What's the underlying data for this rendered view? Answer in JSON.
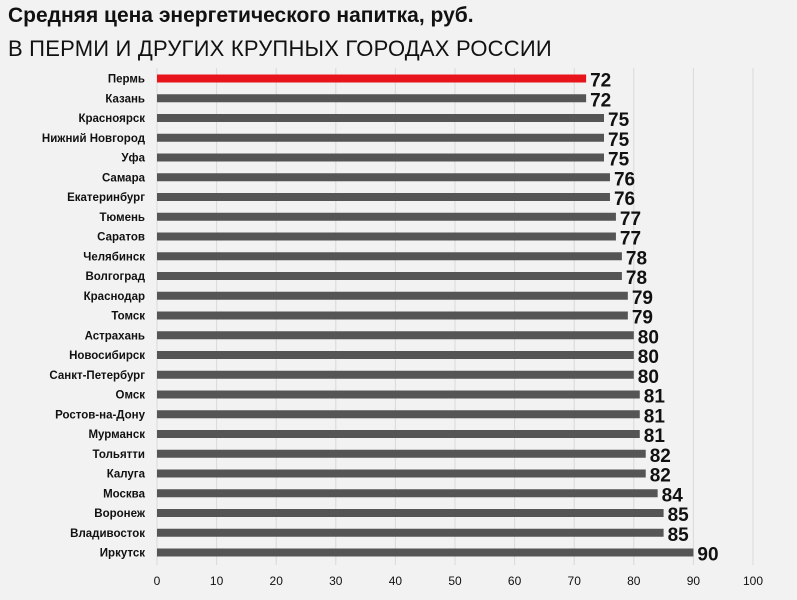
{
  "chart_data": {
    "type": "bar",
    "orientation": "horizontal",
    "title": "Средняя цена энергетического напитка, руб.",
    "subtitle": "В ПЕРМИ И ДРУГИХ КРУПНЫХ ГОРОДАХ РОССИИ",
    "categories": [
      "Пермь",
      "Казань",
      "Красноярск",
      "Нижний Новгород",
      "Уфа",
      "Самара",
      "Екатеринбург",
      "Тюмень",
      "Саратов",
      "Челябинск",
      "Волгоград",
      "Краснодар",
      "Томск",
      "Астрахань",
      "Новосибирск",
      "Санкт-Петербург",
      "Омск",
      "Ростов-на-Дону",
      "Мурманск",
      "Тольятти",
      "Калуга",
      "Москва",
      "Воронеж",
      "Владивосток",
      "Иркутск"
    ],
    "values": [
      72,
      72,
      75,
      75,
      75,
      76,
      76,
      77,
      77,
      78,
      78,
      79,
      79,
      80,
      80,
      80,
      81,
      81,
      81,
      82,
      82,
      84,
      85,
      85,
      90
    ],
    "highlight_index": 0,
    "colors": {
      "bar": "#555555",
      "highlight": "#e8141b",
      "grid": "#d9d9d9"
    },
    "xlim": [
      0,
      100
    ],
    "xticks": [
      0,
      10,
      20,
      30,
      40,
      50,
      60,
      70,
      80,
      90,
      100
    ],
    "grid": true
  }
}
